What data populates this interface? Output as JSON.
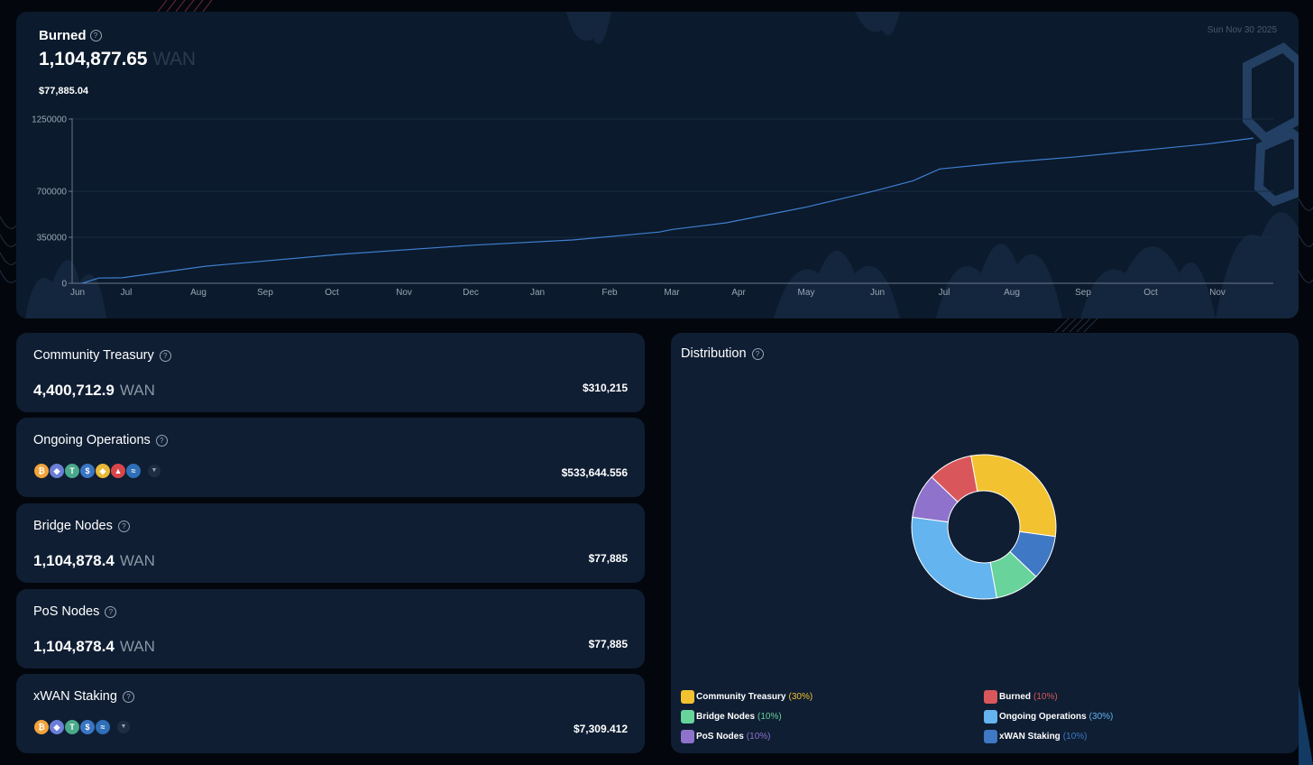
{
  "burned": {
    "title": "Burned",
    "value": "1,104,877.65",
    "unit": "WAN",
    "usd": "$77,885.04",
    "date": "Sun Nov 30 2025"
  },
  "chart_data": {
    "type": "line",
    "title": "Burned",
    "x_ticks": [
      "Jun",
      "Jul",
      "Aug",
      "Sep",
      "Oct",
      "Nov",
      "Dec",
      "Jan",
      "Feb",
      "Mar",
      "Apr",
      "May",
      "Jun",
      "Jul",
      "Aug",
      "Sep",
      "Oct",
      "Nov"
    ],
    "y_ticks": [
      "1250000",
      "700000",
      "350000",
      "0"
    ],
    "y_tick_values": [
      1250000,
      700000,
      350000,
      0
    ],
    "ylim": [
      0,
      1250000
    ],
    "x_range": [
      0,
      18
    ],
    "series": [
      {
        "name": "Burned",
        "x": [
          0.15,
          0.4,
          0.75,
          2,
          4,
          6,
          7.5,
          8.8,
          9,
          9.8,
          10.6,
          11,
          12,
          12.6,
          13,
          14,
          15,
          16,
          17,
          17.7
        ],
        "values": [
          0,
          40000,
          42000,
          130000,
          220000,
          290000,
          330000,
          390000,
          410000,
          460000,
          540000,
          580000,
          700000,
          780000,
          870000,
          920000,
          960000,
          1010000,
          1060000,
          1104877
        ]
      }
    ],
    "color": "#3f7fd0"
  },
  "cards": [
    {
      "title": "Community Treasury",
      "value": "4,400,712.9",
      "unit": "WAN",
      "usd": "$310,215"
    },
    {
      "title": "Ongoing Operations",
      "usd": "$533,644.556"
    },
    {
      "title": "Bridge Nodes",
      "value": "1,104,878.4",
      "unit": "WAN",
      "usd": "$77,885"
    },
    {
      "title": "PoS Nodes",
      "value": "1,104,878.4",
      "unit": "WAN",
      "usd": "$77,885"
    },
    {
      "title": "xWAN Staking",
      "usd": "$7,309.412"
    }
  ],
  "token_icons": {
    "ongoing": [
      {
        "icon": "bitcoin-icon",
        "glyph": "₿",
        "color": "#f2a33a"
      },
      {
        "icon": "ethereum-icon",
        "glyph": "◆",
        "color": "#6b7fd8"
      },
      {
        "icon": "tether-icon",
        "glyph": "T",
        "color": "#4aa98a"
      },
      {
        "icon": "usdc-icon",
        "glyph": "$",
        "color": "#3a75c4"
      },
      {
        "icon": "bnb-icon",
        "glyph": "◈",
        "color": "#e8b935"
      },
      {
        "icon": "avalanche-icon",
        "glyph": "▲",
        "color": "#d9464a"
      },
      {
        "icon": "wan-icon",
        "glyph": "≈",
        "color": "#2e6fb7"
      }
    ],
    "staking": [
      {
        "icon": "bitcoin-icon",
        "glyph": "₿",
        "color": "#f2a33a"
      },
      {
        "icon": "ethereum-icon",
        "glyph": "◆",
        "color": "#6b7fd8"
      },
      {
        "icon": "tether-icon",
        "glyph": "T",
        "color": "#4aa98a"
      },
      {
        "icon": "usdc-icon",
        "glyph": "$",
        "color": "#3a75c4"
      },
      {
        "icon": "wan-icon",
        "glyph": "≈",
        "color": "#2e6fb7"
      }
    ]
  },
  "distribution": {
    "title": "Distribution",
    "slices": [
      {
        "label": "Community Treasury",
        "pct": "(30%)",
        "value": 30,
        "color": "#f2c230"
      },
      {
        "label": "xWAN Staking",
        "pct": "(10%)",
        "value": 10,
        "color": "#3f78c4"
      },
      {
        "label": "Bridge Nodes",
        "pct": "(10%)",
        "value": 10,
        "color": "#68d39a"
      },
      {
        "label": "Ongoing Operations",
        "pct": "(30%)",
        "value": 30,
        "color": "#63b4ef"
      },
      {
        "label": "PoS Nodes",
        "pct": "(10%)",
        "value": 10,
        "color": "#8e72cc"
      },
      {
        "label": "Burned",
        "pct": "(10%)",
        "value": 10,
        "color": "#d9575a"
      }
    ]
  }
}
